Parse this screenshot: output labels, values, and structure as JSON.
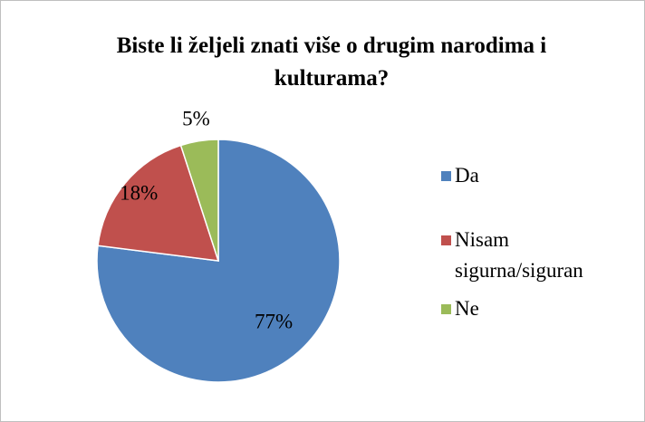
{
  "chart_data": {
    "type": "pie",
    "title": "Biste li željeli znati više o drugim narodima i kulturama?",
    "categories": [
      "Da",
      "Nisam sigurna/siguran",
      "Ne"
    ],
    "values": [
      77,
      18,
      5
    ],
    "value_labels": [
      "77%",
      "18%",
      "5%"
    ],
    "colors": [
      "#4f81bd",
      "#c0504d",
      "#9bbb59"
    ],
    "legend": "right"
  }
}
